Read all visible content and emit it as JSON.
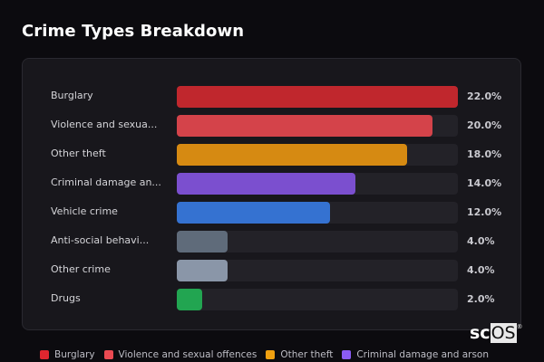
{
  "title": "Crime Types Breakdown",
  "watermark": {
    "prefix": "sc",
    "boxed": "OS",
    "reg": "®"
  },
  "chart_data": {
    "type": "bar",
    "orientation": "horizontal",
    "title": "Crime Types Breakdown",
    "categories": [
      "Burglary",
      "Violence and sexual offences",
      "Other theft",
      "Criminal damage and arson",
      "Vehicle crime",
      "Anti-social behaviour",
      "Other crime",
      "Drugs"
    ],
    "display_labels": [
      "Burglary",
      "Violence and sexua...",
      "Other theft",
      "Criminal damage an...",
      "Vehicle crime",
      "Anti-social behavi...",
      "Other crime",
      "Drugs"
    ],
    "values": [
      22.0,
      20.0,
      18.0,
      14.0,
      12.0,
      4.0,
      4.0,
      2.0
    ],
    "value_labels": [
      "22.0%",
      "20.0%",
      "18.0%",
      "14.0%",
      "12.0%",
      "4.0%",
      "4.0%",
      "2.0%"
    ],
    "colors": [
      "#c0272d",
      "#d4434a",
      "#d68a12",
      "#7b4fcf",
      "#3572d1",
      "#5f6b7a",
      "#8a96a8",
      "#22a551"
    ],
    "max": 22.0,
    "xlabel": "",
    "ylabel": "",
    "legend": [
      {
        "label": "Burglary",
        "color": "#e0262f"
      },
      {
        "label": "Violence and sexual offences",
        "color": "#eb4a52"
      },
      {
        "label": "Other theft",
        "color": "#f0a010"
      },
      {
        "label": "Criminal damage and arson",
        "color": "#8b5cf6"
      }
    ],
    "legend_position": "bottom",
    "grid": false
  }
}
